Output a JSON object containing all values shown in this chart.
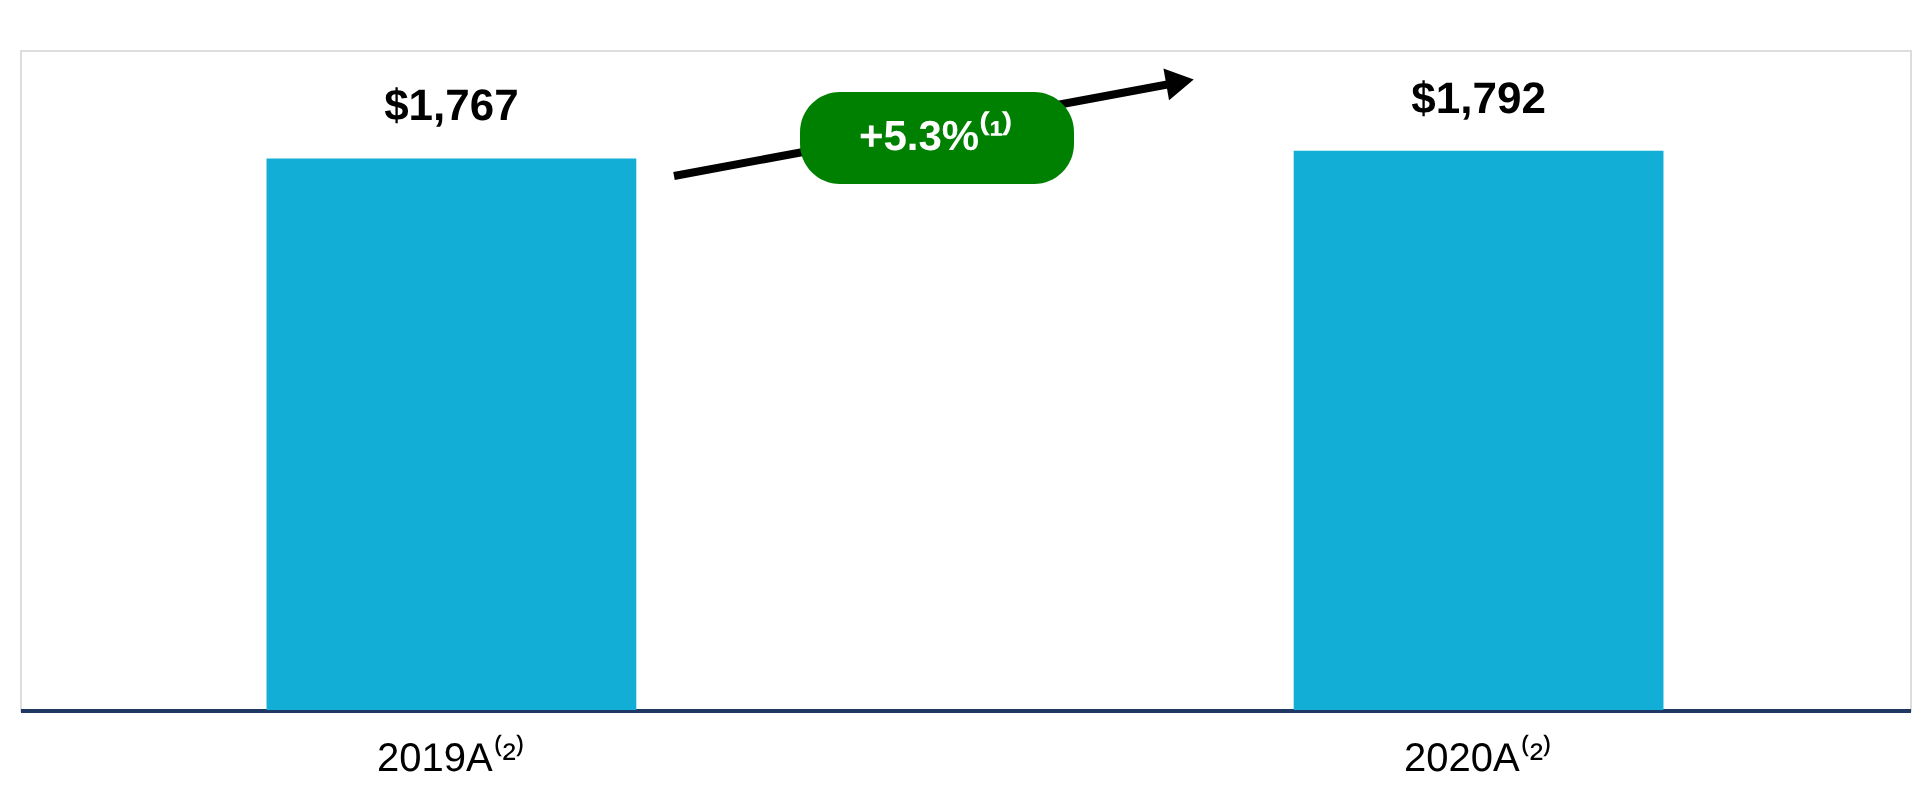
{
  "chart_data": {
    "type": "bar",
    "categories": [
      "2019A⁽²⁾",
      "2020A⁽²⁾"
    ],
    "values": [
      1767,
      1792
    ],
    "color": "#13aed6",
    "value_labels": [
      "$1,767",
      "$1,792"
    ],
    "annotations": [
      "+5.3%⁽¹⁾"
    ],
    "grid": false
  }
}
